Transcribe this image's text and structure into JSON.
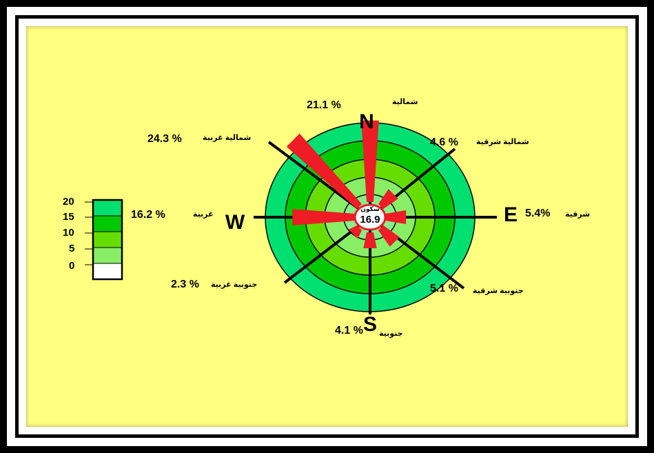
{
  "chart_data": {
    "type": "wind-rose",
    "directions": [
      {
        "key": "N",
        "letter": "N",
        "name": "شمالية",
        "value": 21.1,
        "label": "21.1  %"
      },
      {
        "key": "NE",
        "letter": "",
        "name": "شمالية شرقية",
        "value": 4.6,
        "label": "4.6 %"
      },
      {
        "key": "E",
        "letter": "E",
        "name": "شرقية",
        "value": 5.4,
        "label": "5.4%"
      },
      {
        "key": "SE",
        "letter": "",
        "name": "جنوبية شرقية",
        "value": 5.1,
        "label": "5.1 %"
      },
      {
        "key": "S",
        "letter": "S",
        "name": "جنوبية",
        "value": 4.1,
        "label": "4.1 %"
      },
      {
        "key": "SW",
        "letter": "",
        "name": "جنوبية غربية",
        "value": 2.3,
        "label": "2.3 %"
      },
      {
        "key": "W",
        "letter": "W",
        "name": "غربية",
        "value": 16.2,
        "label": "16.2  %"
      },
      {
        "key": "NW",
        "letter": "",
        "name": "شمالية غربية",
        "value": 24.3,
        "label": "24.3 %"
      }
    ],
    "calm": {
      "label": "سكون",
      "value": 16.9,
      "value_text": "16.9"
    },
    "scale": {
      "ticks": [
        "20",
        "15",
        "10",
        "5",
        "0"
      ],
      "band_colors": [
        "#00e070",
        "#00c800",
        "#66dd00",
        "#88ee66",
        "#ffffff"
      ]
    },
    "colors": {
      "background": "#ffff80",
      "petal": "#ee1c25",
      "ring_outer": "#00e070",
      "ring_2": "#00c800",
      "ring_3": "#66dd00",
      "ring_4": "#88ee66",
      "ring_inner": "#88ee88"
    }
  }
}
